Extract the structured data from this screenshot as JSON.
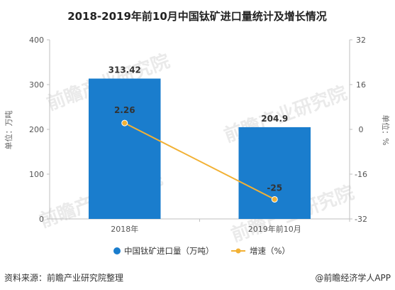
{
  "title": "2018-2019年前10月中国钛矿进口量统计及增长情况",
  "left_axis_title": "单位：万吨",
  "right_axis_title": "单位：%",
  "source_text": "资料来源：前瞻产业研究院整理",
  "brand_text": "@前瞻经济学人APP",
  "watermark_text": "前瞻产业研究院",
  "colors": {
    "bar": "#1a7dcd",
    "line": "#f2b134",
    "label_bg": "#ffffff"
  },
  "chart_data": {
    "type": "bar",
    "categories": [
      "2018年",
      "2019年前10月"
    ],
    "series": [
      {
        "name": "中国钛矿进口量（万吨）",
        "type": "bar",
        "axis": "left",
        "values": [
          313.42,
          204.9
        ],
        "labels": [
          "313.42",
          "204.9"
        ]
      },
      {
        "name": "增速（%）",
        "type": "line",
        "axis": "right",
        "values": [
          2.26,
          -25
        ],
        "labels": [
          "2.26",
          "-25"
        ]
      }
    ],
    "left_axis": {
      "min": 0,
      "max": 400,
      "ticks": [
        "0",
        "100",
        "200",
        "300",
        "400"
      ]
    },
    "right_axis": {
      "min": -32,
      "max": 32,
      "ticks": [
        "-32",
        "-16",
        "0",
        "16",
        "32"
      ]
    },
    "legend_position": "bottom",
    "grid": false
  }
}
